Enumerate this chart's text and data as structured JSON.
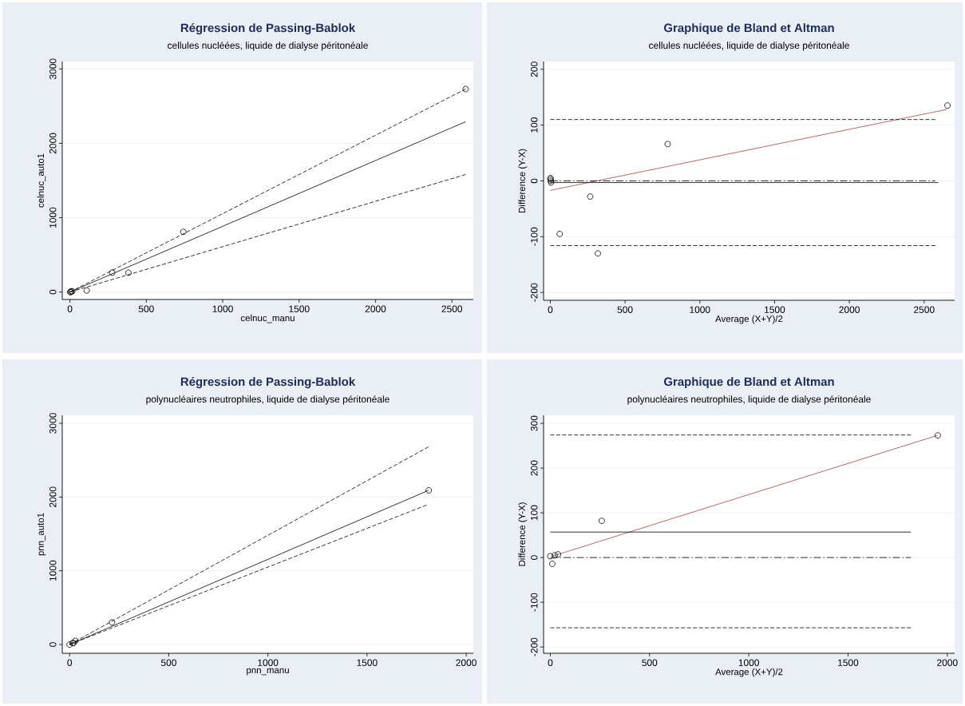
{
  "chart_data": [
    {
      "type": "scatter",
      "title": "Régression de Passing-Bablok",
      "subtitle": "cellules nucléées, liquide de dialyse péritonéale",
      "xlabel": "celnuc_manu",
      "ylabel": "celnuc_auto1",
      "xlim": [
        -50,
        2640
      ],
      "ylim": [
        -100,
        3100
      ],
      "xticks": [
        0,
        500,
        1000,
        1500,
        2000,
        2500
      ],
      "yticks": [
        0,
        1000,
        2000,
        3000
      ],
      "grid": "y",
      "series": [
        {
          "type": "scatter",
          "color": "#000000",
          "marker": "circle",
          "x": [
            2,
            5,
            10,
            15,
            110,
            277,
            383,
            742,
            2590
          ],
          "values": [
            0,
            0,
            10,
            10,
            20,
            260,
            260,
            810,
            2730
          ]
        },
        {
          "type": "line",
          "color": "#000000",
          "line_style": "solid",
          "marker": "none",
          "x": [
            0,
            2590
          ],
          "values": [
            0,
            2290
          ]
        },
        {
          "type": "line",
          "color": "#000000",
          "line_style": "dashed",
          "marker": "none",
          "x": [
            0,
            2590
          ],
          "values": [
            0,
            2730
          ]
        },
        {
          "type": "line",
          "color": "#000000",
          "line_style": "dashed",
          "marker": "none",
          "x": [
            0,
            2590
          ],
          "values": [
            0,
            1580
          ]
        }
      ]
    },
    {
      "type": "scatter",
      "title": "Graphique de Bland et Altman",
      "subtitle": "cellules nucléées, liquide de dialyse péritonéale",
      "xlabel": "Average (X+Y)/2",
      "ylabel": "Difference (Y-X)",
      "xlim": [
        -45,
        2704
      ],
      "ylim": [
        -214,
        214
      ],
      "xticks": [
        0,
        500,
        1000,
        1500,
        2000,
        2500
      ],
      "yticks": [
        -200,
        -100,
        0,
        100,
        200
      ],
      "grid": "y",
      "series": [
        {
          "type": "scatter",
          "color": "#000000",
          "marker": "circle",
          "x": [
            1,
            2,
            3,
            5,
            63,
            267,
            318,
            785,
            2656
          ],
          "values": [
            5,
            3,
            0,
            -3,
            -95,
            -28,
            -130,
            66,
            135
          ]
        },
        {
          "type": "line",
          "color": "#a04545",
          "line_style": "solid",
          "marker": "none",
          "x": [
            0,
            2650
          ],
          "values": [
            -17,
            128
          ]
        },
        {
          "type": "line",
          "color": "#000000",
          "line_style": "solid",
          "marker": "none",
          "x": [
            0,
            2595
          ],
          "values": [
            -3,
            -3
          ]
        },
        {
          "type": "line",
          "color": "#000000",
          "line_style": "dashed",
          "marker": "none",
          "x": [
            0,
            2575
          ],
          "values": [
            110,
            110
          ]
        },
        {
          "type": "line",
          "color": "#000000",
          "line_style": "dashed",
          "marker": "none",
          "x": [
            0,
            2575
          ],
          "values": [
            -116,
            -116
          ]
        },
        {
          "type": "line",
          "color": "#000000",
          "line_style": "dashdot",
          "marker": "none",
          "x": [
            0,
            2575
          ],
          "values": [
            0,
            0
          ]
        }
      ]
    },
    {
      "type": "scatter",
      "title": "Régression de Passing-Bablok",
      "subtitle": "polynucléaires neutrophiles, liquide de dialyse péritonéale",
      "xlabel": "pnn_manu",
      "ylabel": "pnn_auto1",
      "xlim": [
        -37,
        2036
      ],
      "ylim": [
        -119,
        3108
      ],
      "xticks": [
        0,
        500,
        1000,
        1500,
        2000
      ],
      "yticks": [
        0,
        1000,
        2000,
        3000
      ],
      "grid": "y",
      "series": [
        {
          "type": "scatter",
          "color": "#000000",
          "marker": "circle",
          "x": [
            0,
            15,
            20,
            29,
            214,
            1811
          ],
          "values": [
            0,
            20,
            20,
            50,
            300,
            2090
          ]
        },
        {
          "type": "line",
          "color": "#000000",
          "line_style": "solid",
          "marker": "none",
          "x": [
            0,
            1810
          ],
          "values": [
            0,
            2090
          ]
        },
        {
          "type": "line",
          "color": "#000000",
          "line_style": "dashed",
          "marker": "none",
          "x": [
            0,
            1810
          ],
          "values": [
            0,
            2680
          ]
        },
        {
          "type": "line",
          "color": "#000000",
          "line_style": "dashed",
          "marker": "none",
          "x": [
            0,
            1800
          ],
          "values": [
            0,
            1890
          ]
        }
      ]
    },
    {
      "type": "scatter",
      "title": "Graphique de Bland et Altman",
      "subtitle": "polynucléaires neutrophiles, liquide de dialyse péritonéale",
      "xlabel": "Average (X+Y)/2",
      "ylabel": "Difference (Y-X)",
      "xlim": [
        -34,
        2037
      ],
      "ylim": [
        -214,
        318
      ],
      "xticks": [
        0,
        500,
        1000,
        1500,
        2000
      ],
      "yticks": [
        -200,
        -100,
        0,
        100,
        200,
        300
      ],
      "grid": "y",
      "series": [
        {
          "type": "scatter",
          "color": "#000000",
          "marker": "circle",
          "x": [
            0,
            10,
            22,
            39,
            259,
            1952
          ],
          "values": [
            3,
            -14,
            5,
            7,
            82,
            273
          ]
        },
        {
          "type": "line",
          "color": "#a04545",
          "line_style": "solid",
          "marker": "none",
          "x": [
            10,
            1950
          ],
          "values": [
            3,
            273
          ]
        },
        {
          "type": "line",
          "color": "#000000",
          "line_style": "solid",
          "marker": "none",
          "x": [
            0,
            1817
          ],
          "values": [
            57,
            57
          ]
        },
        {
          "type": "line",
          "color": "#000000",
          "line_style": "dashed",
          "marker": "none",
          "x": [
            0,
            1817
          ],
          "values": [
            274,
            274
          ]
        },
        {
          "type": "line",
          "color": "#000000",
          "line_style": "dashed",
          "marker": "none",
          "x": [
            0,
            1817
          ],
          "values": [
            -157,
            -157
          ]
        },
        {
          "type": "line",
          "color": "#000000",
          "line_style": "dashdot",
          "marker": "none",
          "x": [
            0,
            1817
          ],
          "values": [
            0,
            0
          ]
        }
      ]
    }
  ]
}
